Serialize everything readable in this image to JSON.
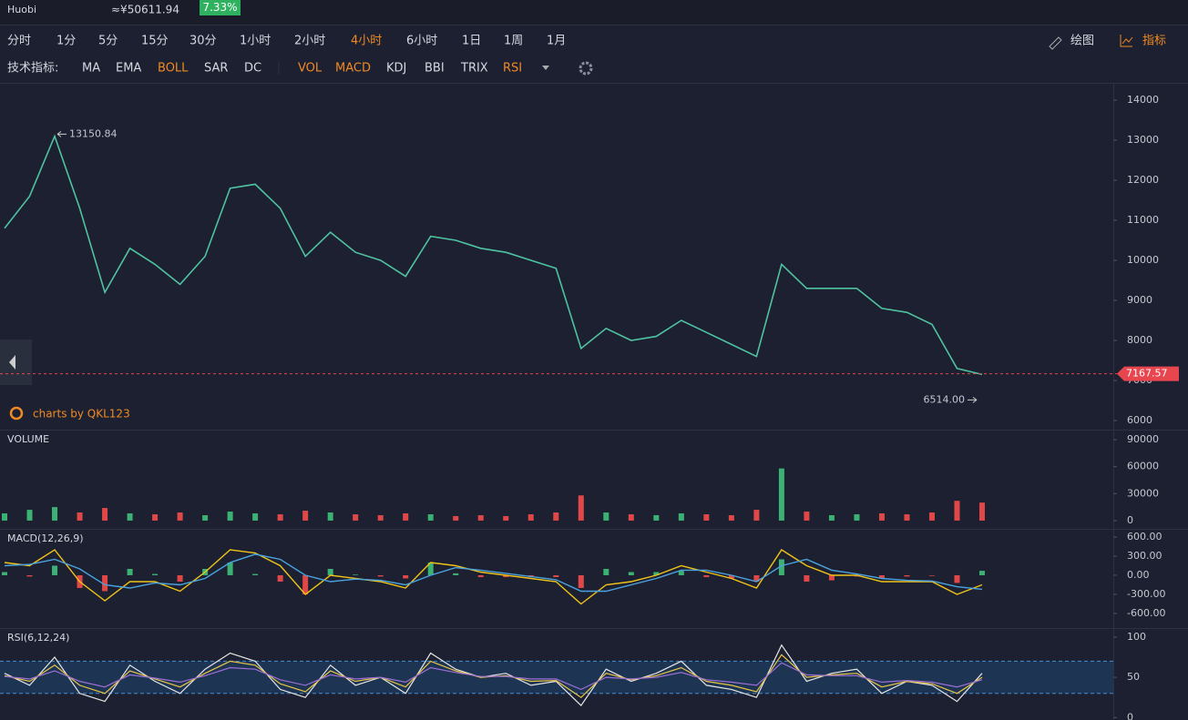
{
  "header": {
    "exchange": "Huobi",
    "price_cny": "≈¥50611.94",
    "change": "7.33%"
  },
  "toolbar": {
    "periods": [
      {
        "label": "分时",
        "active": false
      },
      {
        "label": "1分",
        "active": false
      },
      {
        "label": "5分",
        "active": false
      },
      {
        "label": "15分",
        "active": false
      },
      {
        "label": "30分",
        "active": false
      },
      {
        "label": "1小时",
        "active": false
      },
      {
        "label": "2小时",
        "active": false
      },
      {
        "label": "4小时",
        "active": true
      },
      {
        "label": "6小时",
        "active": false
      },
      {
        "label": "1日",
        "active": false
      },
      {
        "label": "1周",
        "active": false
      },
      {
        "label": "1月",
        "active": false
      }
    ],
    "draw": "绘图",
    "indicators": "指标"
  },
  "indicator_bar": {
    "label": "技术指标:",
    "main": [
      {
        "label": "MA",
        "active": false
      },
      {
        "label": "EMA",
        "active": false
      },
      {
        "label": "BOLL",
        "active": true
      },
      {
        "label": "SAR",
        "active": false
      },
      {
        "label": "DC",
        "active": false
      }
    ],
    "sub": [
      {
        "label": "VOL",
        "active": true
      },
      {
        "label": "MACD",
        "active": true
      },
      {
        "label": "KDJ",
        "active": false
      },
      {
        "label": "BBI",
        "active": false
      },
      {
        "label": "TRIX",
        "active": false
      },
      {
        "label": "RSI",
        "active": true
      }
    ]
  },
  "watermark": "charts by QKL123",
  "chart_data": [
    {
      "type": "line",
      "color": "#4fc3a1",
      "ylim": [
        5773,
        14409
      ],
      "yticks": [
        6000,
        7000,
        8000,
        9000,
        10000,
        11000,
        12000,
        13000,
        14000
      ],
      "values": [
        10800,
        11600,
        13100,
        11300,
        9200,
        10300,
        9900,
        9400,
        10100,
        11800,
        11900,
        11300,
        10100,
        10700,
        10200,
        10000,
        9600,
        10600,
        10500,
        10300,
        10200,
        10000,
        9800,
        7800,
        8300,
        8000,
        8100,
        8500,
        8200,
        7900,
        7600,
        9900,
        9300,
        9300,
        9300,
        8800,
        8700,
        8400,
        7300,
        7150
      ],
      "high": 13150.84,
      "low": {
        "value": 6514,
        "label": "6514.00"
      },
      "last": 7167.57
    },
    {
      "type": "bar",
      "title": "VOLUME",
      "up_color": "#3bb273",
      "down_color": "#e04848",
      "ylim": [
        -9200,
        100200
      ],
      "yticks": [
        0,
        30000,
        60000,
        90000
      ],
      "values": [
        8000,
        12000,
        15000,
        9000,
        14000,
        8000,
        7000,
        9000,
        6000,
        10000,
        8000,
        7000,
        11000,
        9000,
        7000,
        6000,
        8000,
        7000,
        5000,
        6000,
        5000,
        7000,
        9000,
        28000,
        9000,
        7000,
        6000,
        8000,
        7000,
        6000,
        12000,
        58000,
        10000,
        6000,
        7000,
        8000,
        7000,
        9000,
        22000,
        20000
      ]
    },
    {
      "type": "macd",
      "title": "MACD(12,26,9)",
      "ylim": [
        -829,
        714
      ],
      "yticks": [
        {
          "value": -600,
          "label": "-600.00"
        },
        {
          "value": -300,
          "label": "-300.00"
        },
        {
          "value": 0,
          "label": "0.00"
        },
        {
          "value": 300,
          "label": "300.00"
        },
        {
          "value": 600,
          "label": "600.00"
        }
      ],
      "up_color": "#3bb273",
      "down_color": "#e04848",
      "histogram": [
        50,
        -20,
        150,
        -200,
        -250,
        100,
        20,
        -100,
        100,
        200,
        20,
        -100,
        -300,
        100,
        10,
        -20,
        -50,
        200,
        30,
        -30,
        -30,
        -30,
        -30,
        -200,
        100,
        50,
        50,
        70,
        -30,
        -50,
        -100,
        250,
        -100,
        -80,
        -20,
        -50,
        -20,
        -10,
        -120,
        70
      ],
      "series": [
        {
          "color": "#f0c419",
          "values": [
            200,
            150,
            400,
            -100,
            -400,
            -100,
            -100,
            -250,
            50,
            400,
            350,
            150,
            -300,
            0,
            -50,
            -100,
            -200,
            200,
            150,
            50,
            0,
            -50,
            -100,
            -450,
            -150,
            -100,
            0,
            150,
            50,
            -50,
            -200,
            400,
            150,
            0,
            0,
            -100,
            -100,
            -100,
            -300,
            -150
          ]
        },
        {
          "color": "#4aa3df",
          "values": [
            150,
            170,
            250,
            100,
            -150,
            -200,
            -120,
            -150,
            -50,
            200,
            330,
            250,
            0,
            -100,
            -60,
            -80,
            -150,
            0,
            120,
            80,
            30,
            -20,
            -70,
            -250,
            -250,
            -150,
            -50,
            80,
            80,
            0,
            -100,
            150,
            250,
            80,
            20,
            -50,
            -80,
            -90,
            -180,
            -220
          ]
        }
      ]
    },
    {
      "type": "line",
      "title": "RSI(6,12,24)",
      "ylim": [
        -3,
        110
      ],
      "yticks": [
        0,
        50,
        100
      ],
      "bands": [
        30,
        70
      ],
      "series": [
        {
          "color": "#e6e6e6",
          "values": [
            55,
            40,
            75,
            30,
            20,
            65,
            45,
            30,
            60,
            80,
            70,
            35,
            25,
            65,
            40,
            50,
            30,
            80,
            60,
            50,
            55,
            40,
            45,
            15,
            60,
            45,
            55,
            70,
            40,
            35,
            25,
            90,
            45,
            55,
            60,
            30,
            45,
            40,
            20,
            55
          ]
        },
        {
          "color": "#e8c547",
          "values": [
            52,
            45,
            65,
            40,
            30,
            58,
            48,
            38,
            55,
            70,
            65,
            42,
            32,
            58,
            45,
            50,
            38,
            70,
            58,
            50,
            52,
            45,
            46,
            25,
            55,
            47,
            52,
            62,
            45,
            40,
            32,
            78,
            50,
            53,
            55,
            38,
            45,
            42,
            30,
            50
          ]
        },
        {
          "color": "#9b6fd6",
          "values": [
            51,
            48,
            58,
            45,
            38,
            53,
            49,
            44,
            52,
            62,
            60,
            47,
            40,
            53,
            48,
            50,
            44,
            62,
            56,
            51,
            51,
            48,
            48,
            35,
            50,
            48,
            50,
            56,
            47,
            44,
            40,
            68,
            53,
            52,
            52,
            44,
            46,
            44,
            38,
            47
          ]
        }
      ]
    }
  ]
}
